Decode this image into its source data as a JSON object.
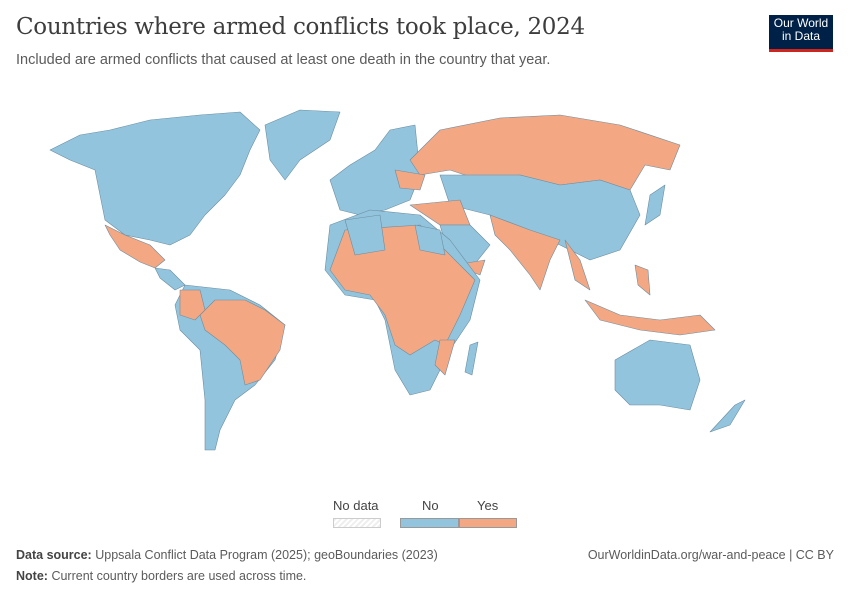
{
  "header": {
    "title": "Countries where armed conflicts took place, 2024",
    "subtitle": "Included are armed conflicts that caused at least one death in the country that year.",
    "logo": "Our World in Data"
  },
  "legend": {
    "no_data": "No data",
    "no": "No",
    "yes": "Yes"
  },
  "colors": {
    "no": "#93c4dd",
    "yes": "#f3a783",
    "no_data": "#e8e8e8",
    "border": "#6b8ea0"
  },
  "footer": {
    "source_label": "Data source:",
    "source": "Uppsala Conflict Data Program (2025); geoBoundaries (2023)",
    "link": "OurWorldinData.org/war-and-peace | CC BY",
    "note_label": "Note:",
    "note": "Current country borders are used across time."
  }
}
